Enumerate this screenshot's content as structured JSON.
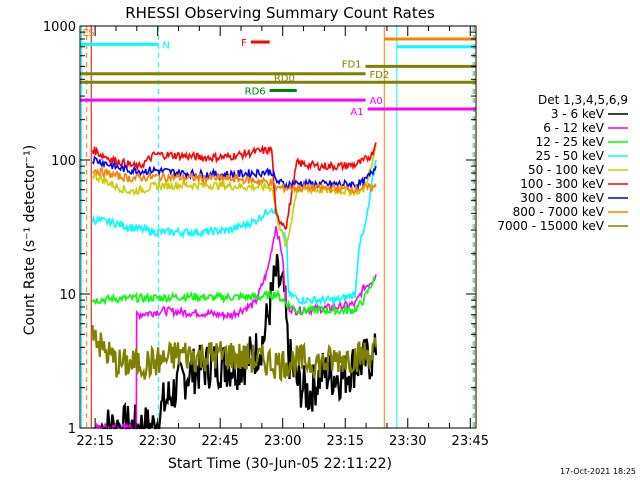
{
  "chart_data": {
    "type": "line",
    "title": "RHESSI Observing Summary Count Rates",
    "xlabel": "Start Time (30-Jun-05 22:11:22)",
    "ylabel": "Count Rate (s⁻¹ detector⁻¹)",
    "ylog": true,
    "ylim": [
      1,
      1000
    ],
    "xlim_minutes": [
      0,
      95
    ],
    "x_tick_labels": [
      "22:15",
      "22:30",
      "22:45",
      "23:00",
      "23:15",
      "23:30",
      "23:45"
    ],
    "x_tick_minutes": [
      3.63,
      18.63,
      33.63,
      48.63,
      63.63,
      78.63,
      93.63
    ],
    "y_tick_labels": [
      "1",
      "10",
      "100",
      "1000"
    ],
    "y_ticks": [
      1,
      10,
      100,
      1000
    ],
    "legend_title": "Det 1,3,4,5,6,9",
    "legend_position": "right",
    "timestamp": "17-Oct-2021 18:25",
    "series": [
      {
        "name": "3 - 6 keV",
        "color": "#000000",
        "points": [
          [
            5,
            1
          ],
          [
            18,
            1
          ],
          [
            20,
            1.5
          ],
          [
            26,
            2.6
          ],
          [
            32,
            3.0
          ],
          [
            38,
            2.9
          ],
          [
            42,
            3.6
          ],
          [
            44,
            4.6
          ],
          [
            47,
            14
          ],
          [
            49,
            10
          ],
          [
            50,
            3.5
          ],
          [
            52,
            2.2
          ],
          [
            55,
            1.8
          ],
          [
            58,
            2.6
          ],
          [
            63,
            2.4
          ],
          [
            66,
            3.0
          ],
          [
            70,
            3.3
          ],
          [
            71,
            3.5
          ]
        ]
      },
      {
        "name": "6 - 12 keV",
        "color": "#ff00ff",
        "points": [
          [
            3,
            1
          ],
          [
            11,
            1
          ],
          [
            13.5,
            1
          ],
          [
            13.6,
            7
          ],
          [
            20,
            7.5
          ],
          [
            25,
            7.3
          ],
          [
            30,
            7.2
          ],
          [
            36,
            6.9
          ],
          [
            42,
            8.5
          ],
          [
            45,
            15
          ],
          [
            47,
            32
          ],
          [
            48.5,
            20
          ],
          [
            49.5,
            8
          ],
          [
            52,
            7.5
          ],
          [
            58,
            7.8
          ],
          [
            62,
            8
          ],
          [
            66,
            8.4
          ],
          [
            68,
            11
          ],
          [
            70,
            12.5
          ],
          [
            71,
            14
          ]
        ]
      },
      {
        "name": "12 - 25 keV",
        "color": "#00ff00",
        "points": [
          [
            3,
            9
          ],
          [
            8,
            9.2
          ],
          [
            13,
            9.3
          ],
          [
            20,
            9.4
          ],
          [
            26,
            9.6
          ],
          [
            32,
            9.4
          ],
          [
            38,
            9.5
          ],
          [
            43,
            9.5
          ],
          [
            47,
            10
          ],
          [
            49.5,
            8.6
          ],
          [
            52,
            7.5
          ],
          [
            57,
            7.6
          ],
          [
            62,
            7.5
          ],
          [
            66,
            7.6
          ],
          [
            68,
            9
          ],
          [
            70,
            12
          ],
          [
            71,
            13
          ]
        ]
      },
      {
        "name": "25 - 50 keV",
        "color": "#00ffff",
        "points": [
          [
            3,
            36
          ],
          [
            8,
            34
          ],
          [
            13,
            31
          ],
          [
            18,
            29
          ],
          [
            24,
            29
          ],
          [
            30,
            29
          ],
          [
            36,
            30
          ],
          [
            42,
            35
          ],
          [
            46,
            44
          ],
          [
            47,
            40
          ],
          [
            48,
            30
          ],
          [
            49.6,
            25
          ],
          [
            50,
            10
          ],
          [
            53,
            9
          ],
          [
            57,
            9
          ],
          [
            62,
            9
          ],
          [
            66,
            10
          ],
          [
            67,
            24
          ],
          [
            68,
            28
          ],
          [
            69,
            40
          ],
          [
            70,
            65
          ],
          [
            71,
            100
          ]
        ]
      },
      {
        "name": "50 - 100 keV",
        "color": "#cccc00",
        "points": [
          [
            3,
            78
          ],
          [
            6,
            70
          ],
          [
            9,
            63
          ],
          [
            12,
            58
          ],
          [
            15,
            60
          ],
          [
            18,
            64
          ],
          [
            24,
            65
          ],
          [
            30,
            65
          ],
          [
            36,
            64
          ],
          [
            40,
            63
          ],
          [
            43,
            63
          ],
          [
            46,
            63
          ],
          [
            47.5,
            36
          ],
          [
            49.5,
            22
          ],
          [
            52,
            60
          ],
          [
            57,
            60
          ],
          [
            62,
            59
          ],
          [
            66,
            58
          ],
          [
            68,
            60
          ],
          [
            70,
            90
          ],
          [
            71,
            130
          ]
        ]
      },
      {
        "name": "100 - 300 keV",
        "color": "#ff0000",
        "points": [
          [
            3,
            120
          ],
          [
            5,
            110
          ],
          [
            8,
            100
          ],
          [
            12,
            92
          ],
          [
            14,
            88
          ],
          [
            18,
            110
          ],
          [
            24,
            108
          ],
          [
            30,
            104
          ],
          [
            36,
            106
          ],
          [
            42,
            115
          ],
          [
            45,
            118
          ],
          [
            46,
            120
          ],
          [
            47,
            38
          ],
          [
            49.5,
            32
          ],
          [
            52,
            95
          ],
          [
            57,
            90
          ],
          [
            62,
            90
          ],
          [
            66,
            92
          ],
          [
            68,
            98
          ],
          [
            70,
            110
          ],
          [
            71,
            135
          ]
        ]
      },
      {
        "name": "300 - 800 keV",
        "color": "#0000ff",
        "points": [
          [
            3,
            102
          ],
          [
            6,
            95
          ],
          [
            9,
            88
          ],
          [
            12,
            84
          ],
          [
            15,
            83
          ],
          [
            18,
            84
          ],
          [
            24,
            80
          ],
          [
            30,
            78
          ],
          [
            36,
            78
          ],
          [
            42,
            80
          ],
          [
            46,
            82
          ],
          [
            47,
            70
          ],
          [
            49.5,
            65
          ],
          [
            52,
            67
          ],
          [
            57,
            66
          ],
          [
            62,
            66
          ],
          [
            66,
            66
          ],
          [
            68,
            68
          ],
          [
            70,
            80
          ],
          [
            71,
            90
          ]
        ]
      },
      {
        "name": "800 - 7000 keV",
        "color": "#ff8000",
        "points": [
          [
            3,
            85
          ],
          [
            6,
            80
          ],
          [
            9,
            76
          ],
          [
            12,
            73
          ],
          [
            15,
            74
          ],
          [
            18,
            75
          ],
          [
            24,
            74
          ],
          [
            30,
            73
          ],
          [
            36,
            73
          ],
          [
            42,
            70
          ],
          [
            46,
            68
          ],
          [
            47,
            62
          ],
          [
            52,
            62
          ],
          [
            57,
            62
          ],
          [
            62,
            61
          ],
          [
            66,
            61
          ],
          [
            68,
            62
          ],
          [
            70,
            62
          ],
          [
            71,
            63
          ]
        ]
      },
      {
        "name": "7000 - 15000 keV",
        "color": "#808000",
        "points": [
          [
            3,
            6
          ],
          [
            5,
            4
          ],
          [
            7,
            3.5
          ],
          [
            9,
            3
          ],
          [
            12,
            3
          ],
          [
            16,
            3
          ],
          [
            20,
            3.2
          ],
          [
            24,
            3.6
          ],
          [
            28,
            3.4
          ],
          [
            32,
            3.5
          ],
          [
            36,
            3.5
          ],
          [
            40,
            3.3
          ],
          [
            44,
            3.2
          ],
          [
            46,
            3.1
          ],
          [
            48,
            3
          ],
          [
            50,
            3.1
          ],
          [
            54,
            3.2
          ],
          [
            58,
            3
          ],
          [
            62,
            3.3
          ],
          [
            66,
            3.4
          ],
          [
            70,
            3.6
          ],
          [
            71,
            4
          ]
        ]
      }
    ],
    "flag_bars": [
      {
        "label": "F",
        "color": "#ff0000",
        "x": [
          41,
          45.5
        ],
        "y": 760
      },
      {
        "label": "FD1",
        "color": "#808000",
        "x": [
          68.5,
          95
        ],
        "y": 500
      },
      {
        "label": "FD2",
        "color": "#808000",
        "x": [
          0,
          68.5
        ],
        "y": 440
      },
      {
        "label": "RD0",
        "color": "#808000",
        "x": [
          0,
          95
        ],
        "y": 380
      },
      {
        "label": "RD6",
        "color": "#008000",
        "x": [
          45.5,
          52
        ],
        "y": 330
      },
      {
        "label": "A0",
        "color": "#ff00ff",
        "x": [
          0,
          68.5
        ],
        "y": 280
      },
      {
        "label": "A1",
        "color": "#ff00ff",
        "x": [
          69,
          95
        ],
        "y": 240
      },
      {
        "label": "N",
        "color": "#00ffff",
        "x": [
          0,
          18.8
        ],
        "y": 730
      },
      {
        "label": "",
        "color": "#00ffff",
        "x": [
          76,
          95
        ],
        "y": 700
      },
      {
        "label": "",
        "color": "#ff8000",
        "x": [
          73,
          95
        ],
        "y": 800
      }
    ],
    "flag_letters": [
      {
        "text": "E",
        "color": "#ff8000",
        "x": 0.6,
        "y": 900
      },
      {
        "text": "S",
        "color": "#ff8000",
        "x": 2.0,
        "y": 900
      }
    ],
    "vertical_markers": [
      {
        "minute": 0.4,
        "color": "#00ffff",
        "dashed": false
      },
      {
        "minute": 1.6,
        "color": "#ff8000",
        "dashed": true
      },
      {
        "minute": 2.7,
        "color": "#ff0000",
        "dashed": false
      },
      {
        "minute": 18.8,
        "color": "#00ffff",
        "dashed": true
      },
      {
        "minute": 73.0,
        "color": "#ff8000",
        "dashed": false
      },
      {
        "minute": 76.0,
        "color": "#00ffff",
        "dashed": false
      },
      {
        "minute": 94.3,
        "color": "#00ffff",
        "dashed": true
      },
      {
        "minute": 94.6,
        "color": "#ff8000",
        "dashed": true
      }
    ]
  }
}
